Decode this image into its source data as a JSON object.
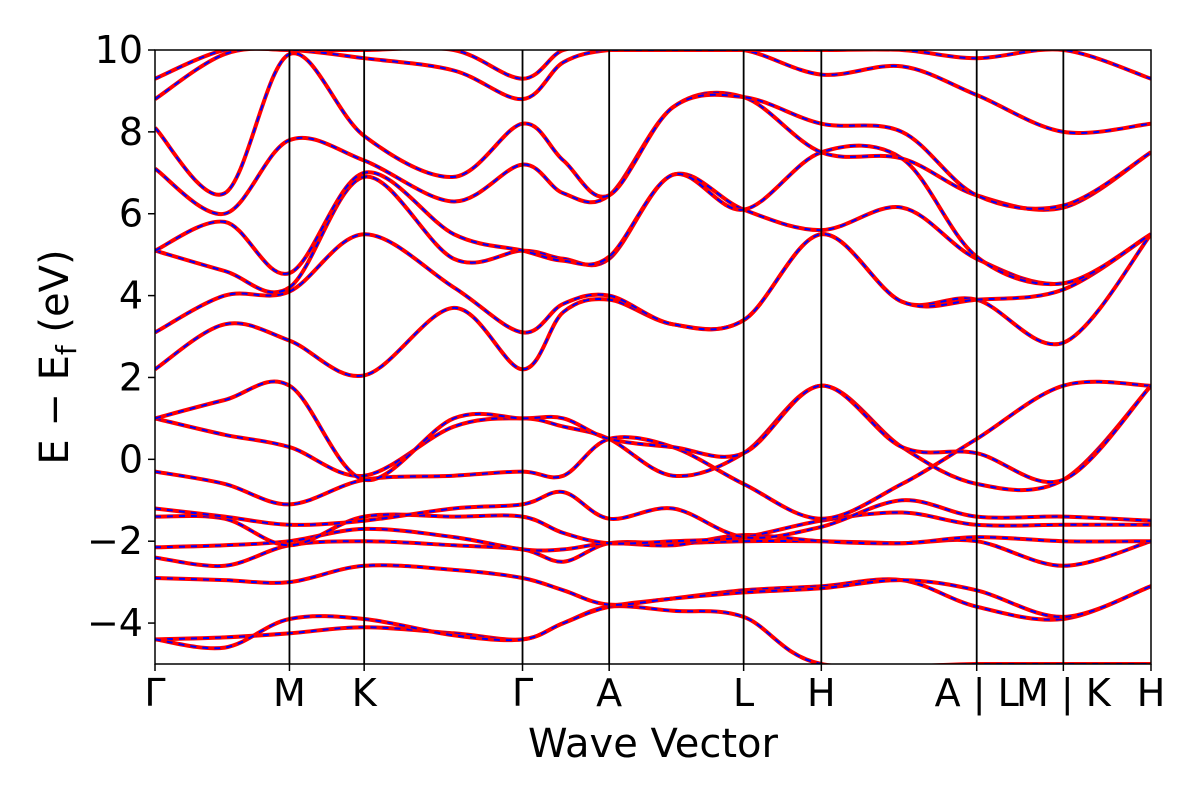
{
  "chart_data": {
    "type": "line",
    "title": "",
    "xlabel": "Wave Vector",
    "ylabel": "E − E",
    "ylabel_sub": "f",
    "ylabel_unit": " (eV)",
    "ylim": [
      -5,
      10
    ],
    "yticks": [
      -4,
      -2,
      0,
      2,
      4,
      6,
      8,
      10
    ],
    "ytick_labels": [
      "−4",
      "−2",
      "0",
      "2",
      "4",
      "6",
      "8",
      "10"
    ],
    "grid": false,
    "legend": "none",
    "k_path_labels": [
      "Γ",
      "M",
      "K",
      "Γ",
      "A",
      "L",
      "H",
      "A | L",
      "M | K",
      "H"
    ],
    "k_positions": [
      0,
      0.135,
      0.21,
      0.369,
      0.456,
      0.591,
      0.669,
      0.825,
      0.912,
      1.0
    ],
    "series_style": {
      "primary_color": "#ff0000",
      "secondary_color": "#0000ff",
      "secondary_dash": "dashed"
    },
    "bands": [
      [
        [
          0,
          -4.4
        ],
        [
          0.07,
          -4.35
        ],
        [
          0.135,
          -4.25
        ],
        [
          0.21,
          -4.1
        ],
        [
          0.3,
          -4.25
        ],
        [
          0.369,
          -4.4
        ],
        [
          0.41,
          -4.0
        ],
        [
          0.456,
          -3.6
        ],
        [
          0.52,
          -3.7
        ],
        [
          0.591,
          -3.85
        ],
        [
          0.669,
          -5.0
        ],
        [
          0.825,
          -5.0
        ],
        [
          0.912,
          -5.0
        ],
        [
          1.0,
          -5.0
        ]
      ],
      [
        [
          0,
          -4.4
        ],
        [
          0.07,
          -4.6
        ],
        [
          0.135,
          -3.9
        ],
        [
          0.21,
          -3.9
        ],
        [
          0.3,
          -4.3
        ],
        [
          0.369,
          -4.4
        ],
        [
          0.41,
          -4.0
        ],
        [
          0.456,
          -3.6
        ],
        [
          0.52,
          -3.4
        ],
        [
          0.591,
          -3.2
        ],
        [
          0.669,
          -3.1
        ],
        [
          0.75,
          -2.95
        ],
        [
          0.825,
          -3.6
        ],
        [
          0.912,
          -3.9
        ],
        [
          1.0,
          -3.1
        ]
      ],
      [
        [
          0,
          -2.9
        ],
        [
          0.07,
          -2.95
        ],
        [
          0.135,
          -3.0
        ],
        [
          0.21,
          -2.6
        ],
        [
          0.3,
          -2.7
        ],
        [
          0.369,
          -2.9
        ],
        [
          0.41,
          -3.2
        ],
        [
          0.456,
          -3.55
        ],
        [
          0.52,
          -3.4
        ],
        [
          0.591,
          -3.25
        ],
        [
          0.669,
          -3.15
        ],
        [
          0.75,
          -2.95
        ],
        [
          0.825,
          -3.2
        ],
        [
          0.912,
          -3.85
        ],
        [
          1.0,
          -3.1
        ]
      ],
      [
        [
          0,
          -2.4
        ],
        [
          0.07,
          -2.6
        ],
        [
          0.135,
          -2.1
        ],
        [
          0.21,
          -2.0
        ],
        [
          0.3,
          -2.1
        ],
        [
          0.369,
          -2.2
        ],
        [
          0.41,
          -2.5
        ],
        [
          0.456,
          -2.05
        ],
        [
          0.52,
          -2.05
        ],
        [
          0.591,
          -2.0
        ],
        [
          0.669,
          -2.0
        ],
        [
          0.75,
          -2.05
        ],
        [
          0.825,
          -2.0
        ],
        [
          0.912,
          -2.6
        ],
        [
          1.0,
          -2.0
        ]
      ],
      [
        [
          0,
          -2.15
        ],
        [
          0.07,
          -2.1
        ],
        [
          0.135,
          -2.0
        ],
        [
          0.21,
          -1.7
        ],
        [
          0.3,
          -1.9
        ],
        [
          0.369,
          -2.2
        ],
        [
          0.41,
          -2.2
        ],
        [
          0.456,
          -2.05
        ],
        [
          0.52,
          -2.1
        ],
        [
          0.591,
          -1.85
        ],
        [
          0.669,
          -2.0
        ],
        [
          0.75,
          -2.05
        ],
        [
          0.825,
          -1.9
        ],
        [
          0.912,
          -2.0
        ],
        [
          1.0,
          -2.0
        ]
      ],
      [
        [
          0,
          -1.4
        ],
        [
          0.07,
          -1.45
        ],
        [
          0.135,
          -2.1
        ],
        [
          0.21,
          -1.4
        ],
        [
          0.3,
          -1.4
        ],
        [
          0.369,
          -1.4
        ],
        [
          0.41,
          -1.8
        ],
        [
          0.456,
          -2.05
        ],
        [
          0.52,
          -2.0
        ],
        [
          0.591,
          -1.9
        ],
        [
          0.669,
          -1.5
        ],
        [
          0.75,
          -1.3
        ],
        [
          0.825,
          -1.6
        ],
        [
          0.912,
          -1.6
        ],
        [
          1.0,
          -1.6
        ]
      ],
      [
        [
          0,
          -1.2
        ],
        [
          0.07,
          -1.4
        ],
        [
          0.135,
          -1.6
        ],
        [
          0.21,
          -1.5
        ],
        [
          0.3,
          -1.2
        ],
        [
          0.369,
          -1.1
        ],
        [
          0.41,
          -0.8
        ],
        [
          0.456,
          -1.45
        ],
        [
          0.52,
          -1.2
        ],
        [
          0.591,
          -1.9
        ],
        [
          0.669,
          -1.65
        ],
        [
          0.75,
          -1.0
        ],
        [
          0.825,
          -1.4
        ],
        [
          0.912,
          -1.4
        ],
        [
          1.0,
          -1.5
        ]
      ],
      [
        [
          0,
          -0.3
        ],
        [
          0.07,
          -0.6
        ],
        [
          0.135,
          -1.1
        ],
        [
          0.21,
          -0.5
        ],
        [
          0.3,
          -0.4
        ],
        [
          0.369,
          -0.3
        ],
        [
          0.41,
          -0.4
        ],
        [
          0.456,
          0.5
        ],
        [
          0.52,
          0.3
        ],
        [
          0.591,
          -0.6
        ],
        [
          0.669,
          -1.45
        ],
        [
          0.75,
          -0.6
        ],
        [
          0.825,
          0.5
        ],
        [
          0.912,
          1.8
        ],
        [
          1.0,
          1.8
        ]
      ],
      [
        [
          0,
          1.0
        ],
        [
          0.07,
          0.6
        ],
        [
          0.135,
          0.3
        ],
        [
          0.21,
          -0.4
        ],
        [
          0.3,
          0.8
        ],
        [
          0.369,
          1.0
        ],
        [
          0.41,
          0.8
        ],
        [
          0.456,
          0.5
        ],
        [
          0.52,
          -0.4
        ],
        [
          0.591,
          0.15
        ],
        [
          0.669,
          1.8
        ],
        [
          0.75,
          0.3
        ],
        [
          0.825,
          -0.6
        ],
        [
          0.912,
          -0.5
        ],
        [
          1.0,
          1.8
        ]
      ],
      [
        [
          0,
          1.0
        ],
        [
          0.07,
          1.45
        ],
        [
          0.135,
          1.8
        ],
        [
          0.21,
          -0.5
        ],
        [
          0.3,
          1.0
        ],
        [
          0.369,
          1.0
        ],
        [
          0.41,
          1.0
        ],
        [
          0.456,
          0.5
        ],
        [
          0.52,
          0.3
        ],
        [
          0.591,
          0.15
        ],
        [
          0.669,
          1.8
        ],
        [
          0.75,
          0.3
        ],
        [
          0.825,
          0.15
        ],
        [
          0.912,
          -0.5
        ],
        [
          1.0,
          1.8
        ]
      ],
      [
        [
          0,
          2.2
        ],
        [
          0.07,
          3.3
        ],
        [
          0.135,
          2.9
        ],
        [
          0.21,
          2.05
        ],
        [
          0.3,
          3.7
        ],
        [
          0.369,
          2.2
        ],
        [
          0.41,
          3.6
        ],
        [
          0.456,
          3.9
        ],
        [
          0.52,
          3.3
        ],
        [
          0.591,
          3.4
        ],
        [
          0.669,
          5.5
        ],
        [
          0.75,
          3.85
        ],
        [
          0.825,
          3.9
        ],
        [
          0.912,
          2.85
        ],
        [
          1.0,
          5.5
        ]
      ],
      [
        [
          0,
          3.1
        ],
        [
          0.07,
          4.0
        ],
        [
          0.135,
          4.1
        ],
        [
          0.21,
          5.5
        ],
        [
          0.3,
          4.2
        ],
        [
          0.369,
          3.1
        ],
        [
          0.41,
          3.8
        ],
        [
          0.456,
          4.0
        ],
        [
          0.52,
          3.3
        ],
        [
          0.591,
          3.4
        ],
        [
          0.669,
          5.5
        ],
        [
          0.75,
          3.85
        ],
        [
          0.825,
          3.9
        ],
        [
          0.912,
          4.15
        ],
        [
          1.0,
          5.5
        ]
      ],
      [
        [
          0,
          5.1
        ],
        [
          0.07,
          4.6
        ],
        [
          0.135,
          4.2
        ],
        [
          0.21,
          6.9
        ],
        [
          0.3,
          4.9
        ],
        [
          0.369,
          5.1
        ],
        [
          0.41,
          4.9
        ],
        [
          0.456,
          4.9
        ],
        [
          0.52,
          6.95
        ],
        [
          0.591,
          6.1
        ],
        [
          0.669,
          5.6
        ],
        [
          0.75,
          6.15
        ],
        [
          0.825,
          4.9
        ],
        [
          0.912,
          4.3
        ],
        [
          1.0,
          5.5
        ]
      ],
      [
        [
          0,
          5.1
        ],
        [
          0.07,
          5.8
        ],
        [
          0.135,
          4.55
        ],
        [
          0.21,
          7.0
        ],
        [
          0.3,
          5.5
        ],
        [
          0.369,
          5.1
        ],
        [
          0.41,
          4.85
        ],
        [
          0.456,
          4.95
        ],
        [
          0.52,
          6.95
        ],
        [
          0.591,
          6.1
        ],
        [
          0.669,
          7.5
        ],
        [
          0.75,
          7.35
        ],
        [
          0.825,
          4.95
        ],
        [
          0.912,
          4.3
        ],
        [
          1.0,
          5.5
        ]
      ],
      [
        [
          0,
          7.1
        ],
        [
          0.07,
          6.0
        ],
        [
          0.135,
          7.8
        ],
        [
          0.21,
          7.3
        ],
        [
          0.3,
          6.3
        ],
        [
          0.369,
          7.2
        ],
        [
          0.41,
          6.5
        ],
        [
          0.456,
          6.45
        ],
        [
          0.52,
          8.6
        ],
        [
          0.591,
          8.85
        ],
        [
          0.669,
          7.5
        ],
        [
          0.75,
          7.35
        ],
        [
          0.825,
          6.45
        ],
        [
          0.912,
          6.15
        ],
        [
          1.0,
          7.5
        ]
      ],
      [
        [
          0,
          8.1
        ],
        [
          0.07,
          6.5
        ],
        [
          0.135,
          9.9
        ],
        [
          0.21,
          7.9
        ],
        [
          0.3,
          6.9
        ],
        [
          0.369,
          8.2
        ],
        [
          0.41,
          7.3
        ],
        [
          0.456,
          6.45
        ],
        [
          0.52,
          8.6
        ],
        [
          0.591,
          8.85
        ],
        [
          0.669,
          8.2
        ],
        [
          0.75,
          8.0
        ],
        [
          0.825,
          6.45
        ],
        [
          0.912,
          6.2
        ],
        [
          1.0,
          7.5
        ]
      ],
      [
        [
          0,
          8.8
        ],
        [
          0.07,
          9.9
        ],
        [
          0.135,
          10.0
        ],
        [
          0.21,
          9.8
        ],
        [
          0.3,
          9.5
        ],
        [
          0.369,
          8.8
        ],
        [
          0.41,
          9.7
        ],
        [
          0.456,
          10.0
        ],
        [
          0.52,
          10.0
        ],
        [
          0.591,
          10.0
        ],
        [
          0.669,
          9.4
        ],
        [
          0.75,
          9.6
        ],
        [
          0.825,
          8.9
        ],
        [
          0.912,
          8.0
        ],
        [
          1.0,
          8.2
        ]
      ],
      [
        [
          0,
          9.3
        ],
        [
          0.07,
          10.0
        ],
        [
          0.135,
          10.0
        ],
        [
          0.21,
          10.0
        ],
        [
          0.3,
          10.0
        ],
        [
          0.369,
          9.3
        ],
        [
          0.41,
          10.0
        ],
        [
          0.456,
          10.0
        ],
        [
          0.52,
          10.0
        ],
        [
          0.591,
          10.0
        ],
        [
          0.669,
          10.0
        ],
        [
          0.75,
          10.0
        ],
        [
          0.825,
          9.8
        ],
        [
          0.912,
          10.0
        ],
        [
          1.0,
          9.3
        ]
      ]
    ]
  }
}
